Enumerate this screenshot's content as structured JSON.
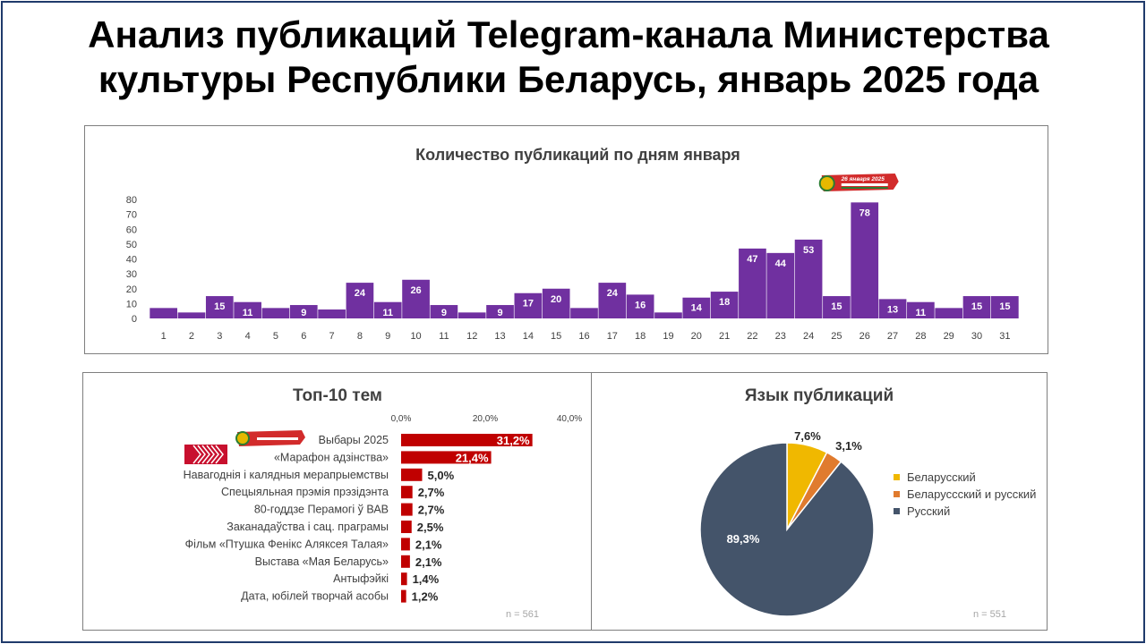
{
  "title_line1": "Анализ публикаций Telegram-канала Министерства",
  "title_line2": "культуры Республики Беларусь, январь 2025 года",
  "daily": {
    "title": "Количество публикаций по дням января",
    "badge_text": "26 января 2025",
    "chart_data": {
      "type": "bar",
      "title": "Количество публикаций по дням января",
      "categories": [
        "1",
        "2",
        "3",
        "4",
        "5",
        "6",
        "7",
        "8",
        "9",
        "10",
        "11",
        "12",
        "13",
        "14",
        "15",
        "16",
        "17",
        "18",
        "19",
        "20",
        "21",
        "22",
        "23",
        "24",
        "25",
        "26",
        "27",
        "28",
        "29",
        "30",
        "31"
      ],
      "values": [
        7,
        4,
        15,
        11,
        7,
        9,
        6,
        24,
        11,
        26,
        9,
        4,
        9,
        17,
        20,
        7,
        24,
        16,
        4,
        14,
        18,
        47,
        44,
        53,
        15,
        78,
        13,
        11,
        7,
        15,
        15
      ],
      "labels": [
        "",
        "",
        "15",
        "11",
        "",
        "9",
        "",
        "24",
        "11",
        "26",
        "9",
        "",
        "9",
        "17",
        "20",
        "",
        "24",
        "16",
        "",
        "14",
        "18",
        "47",
        "44",
        "53",
        "15",
        "78",
        "13",
        "11",
        "",
        "15",
        "15"
      ],
      "yticks": [
        "0",
        "10",
        "20",
        "30",
        "40",
        "50",
        "60",
        "70",
        "80"
      ],
      "ylim": [
        0,
        80
      ],
      "color": "#7030a0"
    }
  },
  "topics": {
    "title": "Топ-10 тем",
    "note": "n = 561",
    "chart_data": {
      "type": "bar",
      "orientation": "horizontal",
      "title": "Топ-10 тем",
      "categories": [
        "Выбары 2025",
        "«Марафон адзінства»",
        "Навагоднія і калядныя мерапрыемствы",
        "Спецыяльная прэмія прэзідэнта",
        "80-годдзе Перамогі ў ВАВ",
        "Заканадаўства і сац. праграмы",
        "Фільм «Птушка Фенікс Аляксея Талая»",
        "Выстава «Мая Беларусь»",
        "Антыфэйкі",
        "Дата, юбілей творчай асобы"
      ],
      "values": [
        31.2,
        21.4,
        5.0,
        2.7,
        2.7,
        2.5,
        2.1,
        2.1,
        1.4,
        1.2
      ],
      "labels": [
        "31,2%",
        "21,4%",
        "5,0%",
        "2,7%",
        "2,7%",
        "2,5%",
        "2,1%",
        "2,1%",
        "1,4%",
        "1,2%"
      ],
      "xticks": [
        "0,0%",
        "20,0%",
        "40,0%"
      ],
      "xlim": [
        0,
        40
      ],
      "color": "#c00000"
    }
  },
  "language": {
    "title": "Язык публикаций",
    "note": "n = 551",
    "chart_data": {
      "type": "pie",
      "title": "Язык публикаций",
      "series": [
        {
          "name": "Беларусский",
          "value": 7.6,
          "label": "7,6%",
          "color": "#f0b800"
        },
        {
          "name": "Беларуссский и русский",
          "value": 3.1,
          "label": "3,1%",
          "color": "#e07b2e"
        },
        {
          "name": "Русский",
          "value": 89.3,
          "label": "89,3%",
          "color": "#44546a"
        }
      ],
      "legend": "right"
    }
  }
}
